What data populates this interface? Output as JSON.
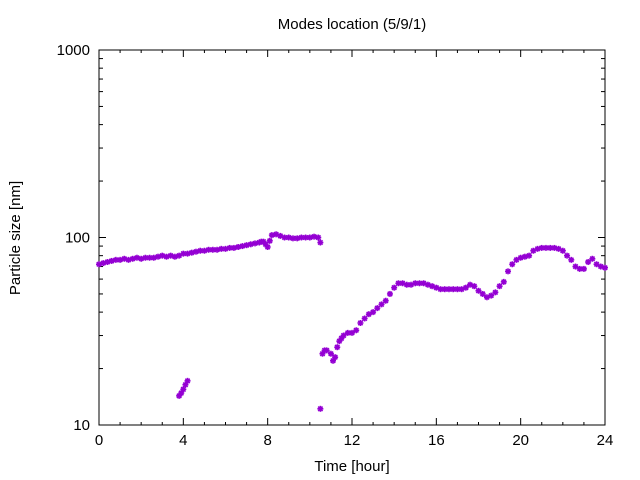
{
  "chart_data": {
    "type": "scatter",
    "title": "Modes location (5/9/1)",
    "xlabel": "Time [hour]",
    "ylabel": "Particle size [nm]",
    "xlim": [
      0,
      24
    ],
    "ylim": [
      10,
      1000
    ],
    "yscale": "log",
    "x_ticks": [
      0,
      4,
      8,
      12,
      16,
      20,
      24
    ],
    "x_tick_labels": [
      "0",
      "4",
      "8",
      "12",
      "16",
      "20",
      "24"
    ],
    "y_ticks": [
      10,
      100,
      1000
    ],
    "y_tick_labels": [
      "10",
      "100",
      "1000"
    ],
    "grid": false,
    "legend": false,
    "marker_color": "#9400d3",
    "series": [
      {
        "points": [
          [
            0.0,
            72
          ],
          [
            0.2,
            73
          ],
          [
            0.4,
            74
          ],
          [
            0.6,
            75
          ],
          [
            0.8,
            76
          ],
          [
            1.0,
            76
          ],
          [
            1.2,
            77
          ],
          [
            1.4,
            76
          ],
          [
            1.6,
            77
          ],
          [
            1.8,
            78
          ],
          [
            2.0,
            77
          ],
          [
            2.2,
            78
          ],
          [
            2.4,
            78
          ],
          [
            2.6,
            78
          ],
          [
            2.8,
            79
          ],
          [
            3.0,
            80
          ],
          [
            3.2,
            79
          ],
          [
            3.4,
            80
          ],
          [
            3.6,
            79
          ],
          [
            3.8,
            80
          ],
          [
            4.0,
            82
          ],
          [
            4.2,
            82
          ],
          [
            4.4,
            83
          ],
          [
            4.6,
            84
          ],
          [
            4.8,
            85
          ],
          [
            5.0,
            85
          ],
          [
            5.2,
            86
          ],
          [
            5.4,
            86
          ],
          [
            5.6,
            86
          ],
          [
            5.8,
            87
          ],
          [
            6.0,
            87
          ],
          [
            6.2,
            88
          ],
          [
            6.4,
            88
          ],
          [
            6.6,
            89
          ],
          [
            6.8,
            90
          ],
          [
            7.0,
            91
          ],
          [
            7.2,
            92
          ],
          [
            7.4,
            93
          ],
          [
            7.6,
            94
          ],
          [
            7.7,
            95
          ],
          [
            7.8,
            95
          ],
          [
            7.9,
            92
          ],
          [
            8.0,
            89
          ],
          [
            8.1,
            96
          ],
          [
            8.2,
            103
          ],
          [
            8.4,
            104
          ],
          [
            8.6,
            102
          ],
          [
            8.8,
            100
          ],
          [
            9.0,
            100
          ],
          [
            9.2,
            99
          ],
          [
            9.4,
            99
          ],
          [
            9.6,
            100
          ],
          [
            9.8,
            100
          ],
          [
            10.0,
            100
          ],
          [
            10.2,
            101
          ],
          [
            10.4,
            100
          ],
          [
            10.5,
            94
          ],
          [
            3.8,
            14.3
          ],
          [
            3.9,
            14.8
          ],
          [
            4.0,
            15.5
          ],
          [
            4.1,
            16.4
          ],
          [
            4.2,
            17.2
          ],
          [
            10.5,
            12.2
          ],
          [
            10.6,
            24
          ],
          [
            10.7,
            25
          ],
          [
            10.8,
            25
          ],
          [
            11.0,
            24
          ],
          [
            11.1,
            22
          ],
          [
            11.2,
            23
          ],
          [
            11.3,
            26
          ],
          [
            11.4,
            28
          ],
          [
            11.5,
            29
          ],
          [
            11.6,
            30
          ],
          [
            11.8,
            31
          ],
          [
            12.0,
            31
          ],
          [
            12.2,
            32
          ],
          [
            12.4,
            35
          ],
          [
            12.6,
            37
          ],
          [
            12.8,
            39
          ],
          [
            13.0,
            40
          ],
          [
            13.2,
            42
          ],
          [
            13.4,
            44
          ],
          [
            13.6,
            46
          ],
          [
            13.8,
            50
          ],
          [
            14.0,
            54
          ],
          [
            14.2,
            57
          ],
          [
            14.4,
            57
          ],
          [
            14.6,
            56
          ],
          [
            14.8,
            56
          ],
          [
            15.0,
            57
          ],
          [
            15.2,
            57
          ],
          [
            15.4,
            57
          ],
          [
            15.6,
            56
          ],
          [
            15.8,
            55
          ],
          [
            16.0,
            54
          ],
          [
            16.2,
            53
          ],
          [
            16.4,
            53
          ],
          [
            16.6,
            53
          ],
          [
            16.8,
            53
          ],
          [
            17.0,
            53
          ],
          [
            17.2,
            53
          ],
          [
            17.4,
            54
          ],
          [
            17.6,
            56
          ],
          [
            17.8,
            55
          ],
          [
            18.0,
            52
          ],
          [
            18.2,
            50
          ],
          [
            18.4,
            48
          ],
          [
            18.6,
            49
          ],
          [
            18.8,
            51
          ],
          [
            19.0,
            55
          ],
          [
            19.2,
            58
          ],
          [
            19.4,
            66
          ],
          [
            19.6,
            72
          ],
          [
            19.8,
            76
          ],
          [
            20.0,
            78
          ],
          [
            20.2,
            79
          ],
          [
            20.4,
            80
          ],
          [
            20.6,
            85
          ],
          [
            20.8,
            87
          ],
          [
            21.0,
            88
          ],
          [
            21.2,
            88
          ],
          [
            21.4,
            88
          ],
          [
            21.6,
            88
          ],
          [
            21.8,
            87
          ],
          [
            22.0,
            85
          ],
          [
            22.2,
            80
          ],
          [
            22.4,
            76
          ],
          [
            22.6,
            70
          ],
          [
            22.8,
            68
          ],
          [
            23.0,
            68
          ],
          [
            23.2,
            74
          ],
          [
            23.4,
            77
          ],
          [
            23.6,
            72
          ],
          [
            23.8,
            70
          ],
          [
            24.0,
            69
          ]
        ]
      }
    ]
  }
}
